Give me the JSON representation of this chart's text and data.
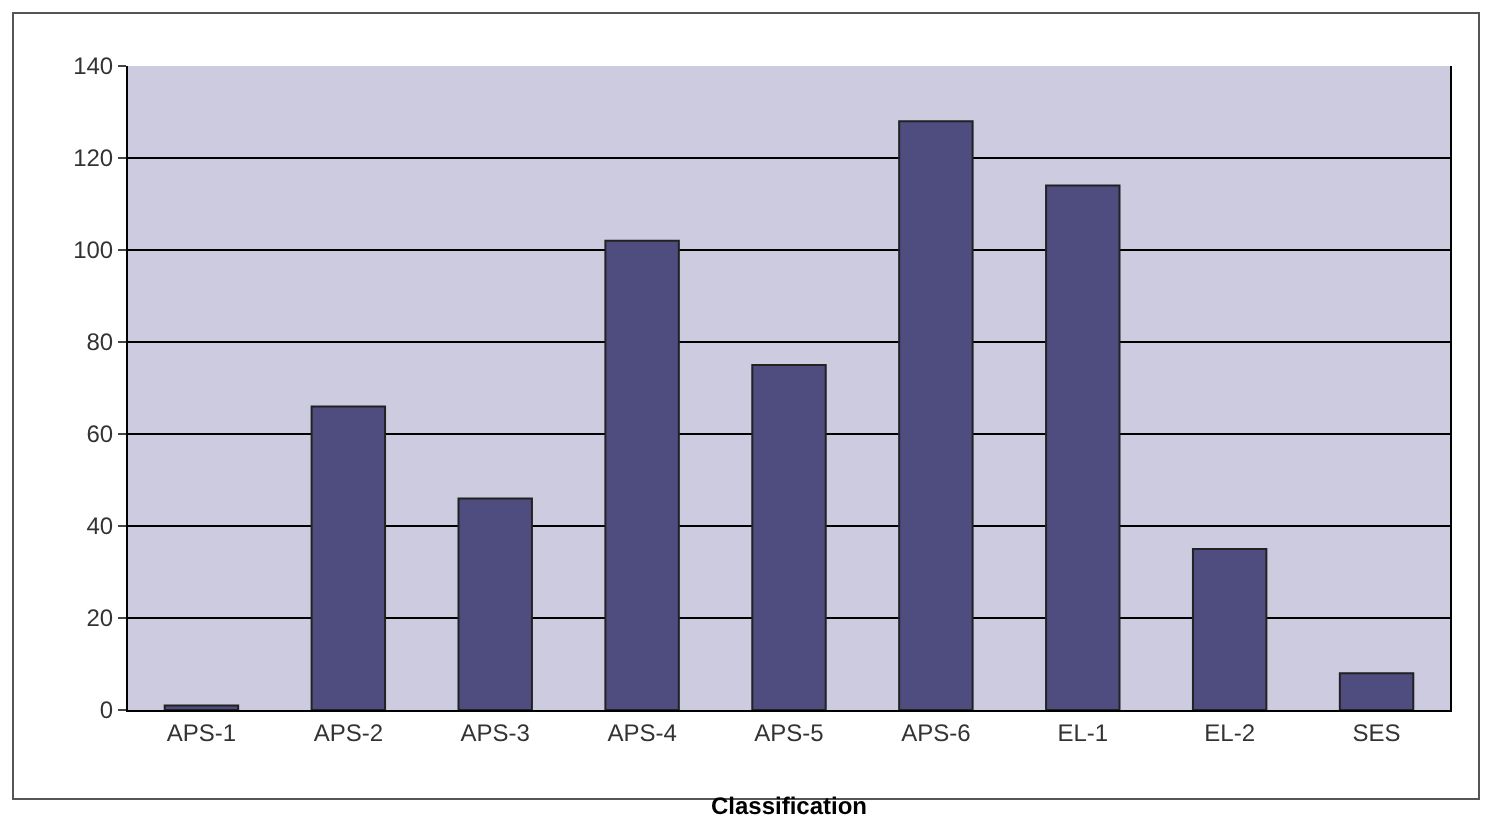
{
  "chart_data": {
    "type": "bar",
    "xlabel": "Classification",
    "categories": [
      "APS-1",
      "APS-2",
      "APS-3",
      "APS-4",
      "APS-5",
      "APS-6",
      "EL-1",
      "EL-2",
      "SES"
    ],
    "values": [
      1,
      66,
      46,
      102,
      75,
      128,
      114,
      35,
      8
    ],
    "color": "#4f4c80",
    "ylim": [
      0,
      140
    ],
    "yticks": [
      0,
      20,
      40,
      60,
      80,
      100,
      120,
      140
    ],
    "grid": "y"
  }
}
